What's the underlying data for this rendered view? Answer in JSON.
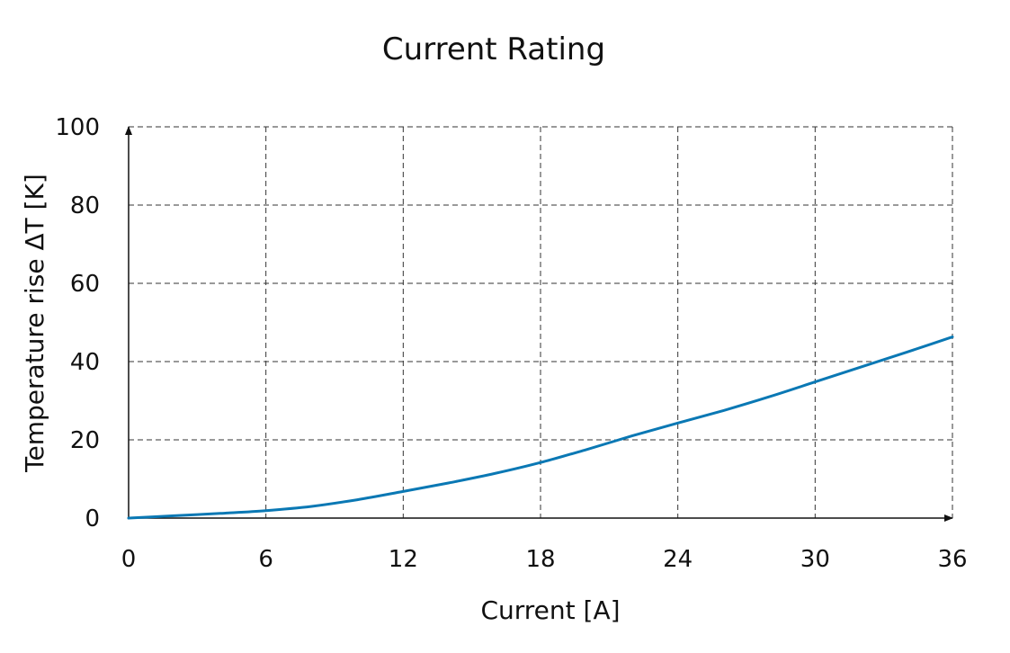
{
  "chart_data": {
    "type": "line",
    "title": "Current Rating",
    "xlabel": "Current [A]",
    "ylabel": "Temperature rise ΔT [K]",
    "xlim": [
      0,
      36
    ],
    "ylim": [
      0,
      100
    ],
    "xticks": [
      0,
      6,
      12,
      18,
      24,
      30,
      36
    ],
    "yticks": [
      0,
      20,
      40,
      60,
      80,
      100
    ],
    "grid": true,
    "series": [
      {
        "color": "#0a78b4",
        "x": [
          0,
          2,
          4,
          6,
          8,
          10,
          12,
          14,
          16,
          18,
          20,
          22,
          24,
          26,
          28,
          30,
          32,
          34,
          36
        ],
        "y": [
          0,
          0.6,
          1.2,
          1.9,
          3.0,
          4.7,
          6.8,
          9.0,
          11.4,
          14.2,
          17.5,
          21.0,
          24.3,
          27.5,
          31.0,
          34.8,
          38.6,
          42.4,
          46.3
        ]
      }
    ]
  }
}
